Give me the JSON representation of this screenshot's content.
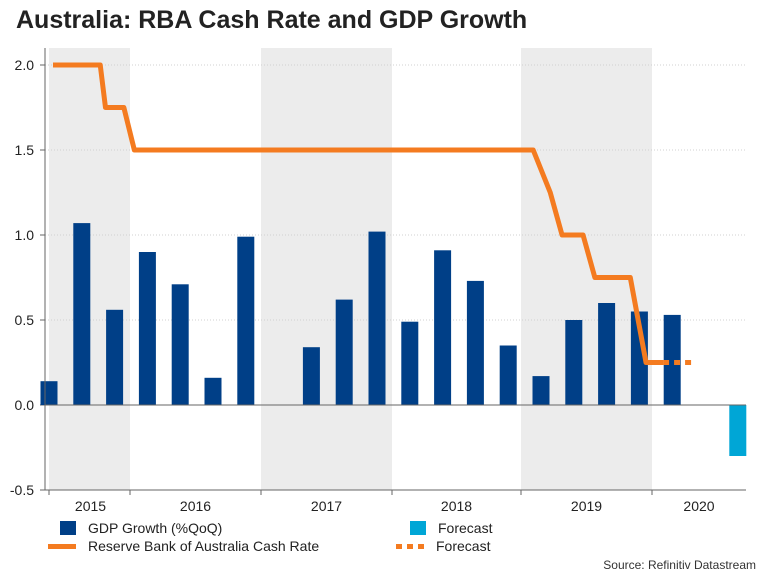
{
  "title": "Australia: RBA Cash Rate and GDP Growth",
  "source": "Source: Refinitiv Datastream",
  "legend": {
    "gdp": "GDP Growth (%QoQ)",
    "gdp_forecast": "Forecast",
    "rate": "Reserve Bank of Australia Cash Rate",
    "rate_forecast": "Forecast"
  },
  "colors": {
    "gdp_bar": "#003f87",
    "gdp_forecast_bar": "#00a6d6",
    "rate_line": "#f47b20",
    "shade": "#ececec"
  },
  "chart_data": {
    "type": "bar+line",
    "title": "Australia: RBA Cash Rate and GDP Growth",
    "ylim": [
      -0.5,
      2.0
    ],
    "yticks": [
      "2.0",
      "1.5",
      "1.0",
      "0.5",
      "0.0",
      "-0.5"
    ],
    "ytick_values": [
      2.0,
      1.5,
      1.0,
      0.5,
      0.0,
      -0.5
    ],
    "years": [
      "2015",
      "2016",
      "2017",
      "2018",
      "2019",
      "2020"
    ],
    "gdp_series": {
      "name": "GDP Growth (%QoQ)",
      "quarters": [
        "2014Q4",
        "2015Q1",
        "2015Q2",
        "2015Q3",
        "2015Q4",
        "2016Q1",
        "2016Q2",
        "2016Q3",
        "2016Q4",
        "2017Q1",
        "2017Q2",
        "2017Q3",
        "2017Q4",
        "2018Q1",
        "2018Q2",
        "2018Q3",
        "2018Q4",
        "2019Q1",
        "2019Q2",
        "2019Q3",
        "2019Q4",
        "2020Q1"
      ],
      "values": [
        0.14,
        1.07,
        0.56,
        0.9,
        0.71,
        0.16,
        0.99,
        null,
        0.34,
        0.62,
        1.02,
        0.49,
        0.91,
        0.73,
        0.35,
        0.17,
        0.5,
        0.6,
        0.55,
        0.53,
        null,
        -0.3
      ],
      "forecast_index": 21
    },
    "rate_series": {
      "name": "Reserve Bank of Australia Cash Rate",
      "points": [
        [
          2015.0,
          2.0
        ],
        [
          2015.36,
          2.0
        ],
        [
          2015.4,
          1.75
        ],
        [
          2015.54,
          1.75
        ],
        [
          2015.62,
          1.5
        ],
        [
          2018.66,
          1.5
        ],
        [
          2018.79,
          1.25
        ],
        [
          2018.88,
          1.0
        ],
        [
          2019.04,
          1.0
        ],
        [
          2019.13,
          0.75
        ],
        [
          2019.4,
          0.75
        ],
        [
          2019.52,
          0.25
        ],
        [
          2019.65,
          0.25
        ]
      ],
      "forecast_points": [
        [
          2019.65,
          0.25
        ],
        [
          2019.88,
          0.25
        ]
      ]
    }
  }
}
